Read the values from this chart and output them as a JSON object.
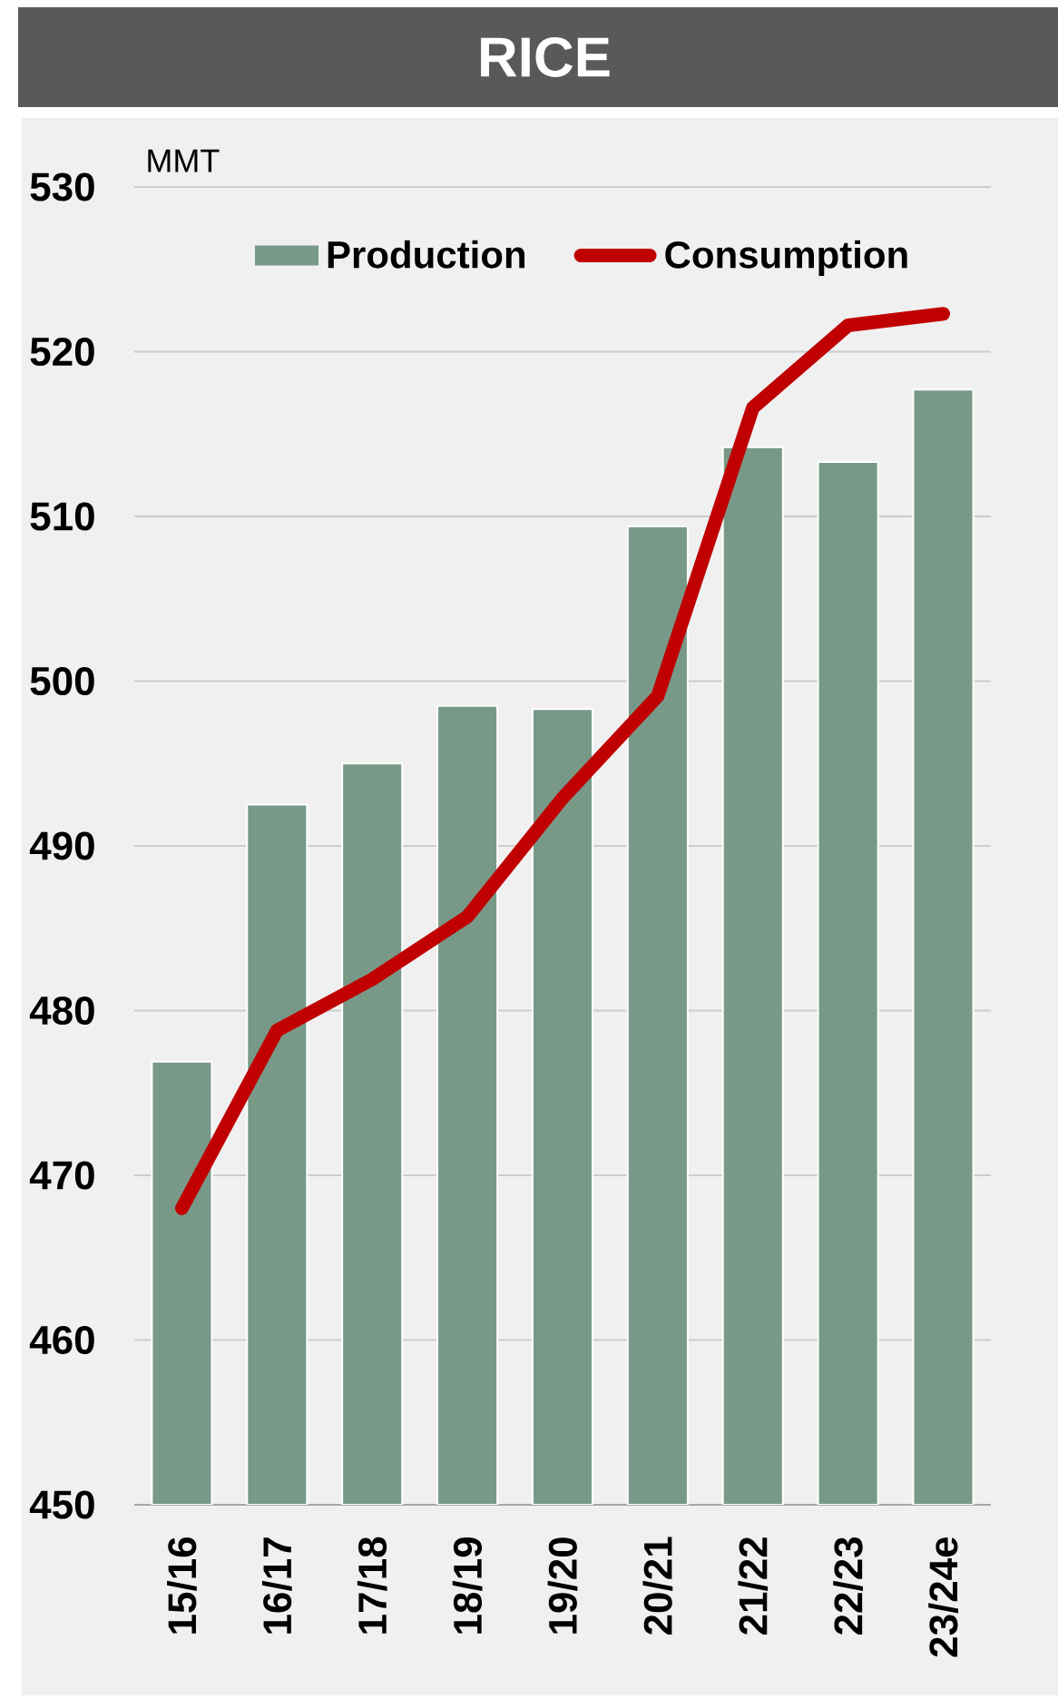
{
  "chart_data": {
    "type": "bar",
    "title": "RICE",
    "ylabel": "MMT",
    "categories": [
      "15/16",
      "16/17",
      "17/18",
      "18/19",
      "19/20",
      "20/21",
      "21/22",
      "22/23",
      "23/24e"
    ],
    "series": [
      {
        "name": "Production",
        "color": "#789988",
        "values": [
          476.9,
          492.5,
          495.0,
          498.5,
          498.3,
          509.4,
          514.2,
          513.3,
          517.7
        ]
      },
      {
        "name": "Consumption",
        "type": "line",
        "color": "#c00000",
        "values": [
          468.0,
          478.8,
          481.9,
          485.7,
          492.9,
          499.1,
          516.6,
          521.6,
          522.3
        ]
      }
    ],
    "ylim": [
      450,
      530
    ],
    "yticks": [
      450,
      460,
      470,
      480,
      490,
      500,
      510,
      520,
      530
    ],
    "grid": "y",
    "legend": "top"
  }
}
